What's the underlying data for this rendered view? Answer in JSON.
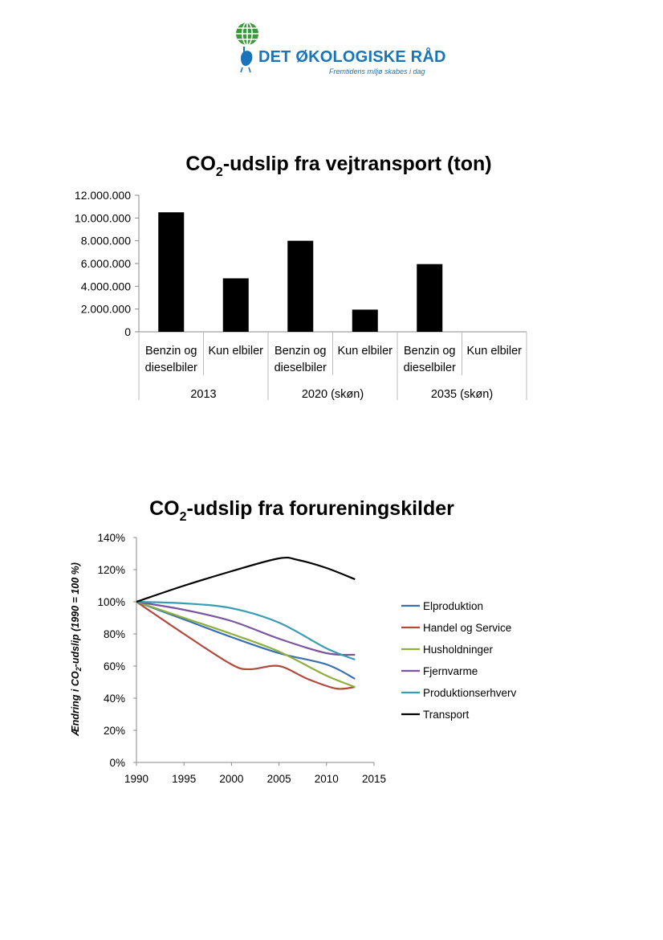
{
  "header": {
    "org_name": "DET ØKOLOGISKE RÅD",
    "tagline": "Fremtidens miljø skabes i dag",
    "colors": {
      "brand_blue": "#1a74b8",
      "brand_green": "#3a9a3a"
    },
    "icon": "globe-bird-logo"
  },
  "chart_data": [
    {
      "type": "bar",
      "title_main": "CO",
      "title_sub": "2",
      "title_rest": "-udslip fra vejtransport (ton)",
      "groups": [
        "2013",
        "2020 (skøn)",
        "2035 (skøn)"
      ],
      "categories": [
        [
          "Benzin og",
          "dieselbiler"
        ],
        [
          "Kun elbiler"
        ],
        [
          "Benzin og",
          "dieselbiler"
        ],
        [
          "Kun elbiler"
        ],
        [
          "Benzin og",
          "dieselbiler"
        ],
        [
          "Kun elbiler"
        ]
      ],
      "values": [
        10500000,
        4700000,
        8000000,
        1950000,
        5950000,
        0
      ],
      "yticks": [
        "0",
        "2.000.000",
        "4.000.000",
        "6.000.000",
        "8.000.000",
        "10.000.000",
        "12.000.000"
      ],
      "ylim": [
        0,
        12000000
      ],
      "bar_color": "#000000"
    },
    {
      "type": "line",
      "title_main": "CO",
      "title_sub": "2",
      "title_rest": "-udslip fra forureningskilder",
      "ylabel_pre": "Ændring i CO",
      "ylabel_sub": "2",
      "ylabel_post": "-udslip (1990 = 100 %)",
      "xlim": [
        1990,
        2015
      ],
      "ylim": [
        0,
        140
      ],
      "xticks": [
        "1990",
        "1995",
        "2000",
        "2005",
        "2010",
        "2015"
      ],
      "yticks": [
        "0%",
        "20%",
        "40%",
        "60%",
        "80%",
        "100%",
        "120%",
        "140%"
      ],
      "legend_position": "right",
      "series": [
        {
          "name": "Elproduktion",
          "color": "#3a6fb0",
          "x": [
            1990,
            1995,
            2000,
            2005,
            2010,
            2013
          ],
          "y": [
            100,
            89,
            78,
            68,
            61,
            52
          ]
        },
        {
          "name": "Handel og Service",
          "color": "#b04a3a",
          "x": [
            1990,
            1995,
            2000,
            2002,
            2005,
            2008,
            2011,
            2013
          ],
          "y": [
            100,
            80,
            61,
            58,
            60,
            52,
            46,
            47
          ]
        },
        {
          "name": "Husholdninger",
          "color": "#8db03e",
          "x": [
            1990,
            1995,
            2000,
            2005,
            2010,
            2013
          ],
          "y": [
            100,
            90,
            80,
            69,
            54,
            47
          ]
        },
        {
          "name": "Fjernvarme",
          "color": "#7a559e",
          "x": [
            1990,
            1995,
            2000,
            2005,
            2010,
            2013
          ],
          "y": [
            100,
            95,
            88,
            77,
            68,
            67
          ]
        },
        {
          "name": "Produktionserhverv",
          "color": "#3a9bb5",
          "x": [
            1990,
            1995,
            2000,
            2005,
            2010,
            2013
          ],
          "y": [
            100,
            99,
            96,
            87,
            71,
            64
          ]
        },
        {
          "name": "Transport",
          "color": "#000000",
          "x": [
            1990,
            1995,
            2000,
            2005,
            2007,
            2010,
            2013
          ],
          "y": [
            100,
            110,
            119,
            127,
            126,
            121,
            114
          ]
        }
      ]
    }
  ]
}
